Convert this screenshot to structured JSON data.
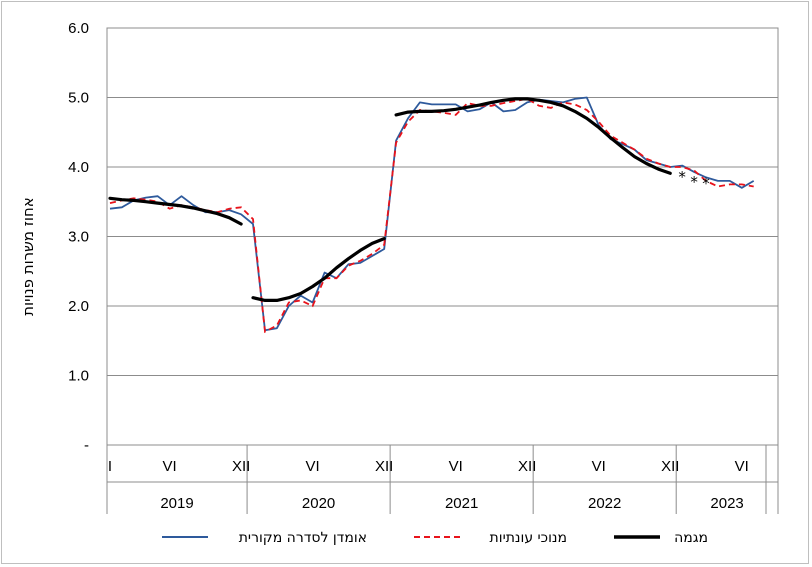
{
  "chart_data": {
    "type": "line",
    "ylabel": "אחוז משרות פנויות",
    "ylim": [
      0,
      6
    ],
    "y_ticks": [
      "-",
      "1.0",
      "2.0",
      "3.0",
      "4.0",
      "5.0",
      "6.0"
    ],
    "grid": true,
    "legend_position": "bottom",
    "x_axis": {
      "month_labels": [
        {
          "label": "I",
          "index": 0
        },
        {
          "label": "VI",
          "index": 5
        },
        {
          "label": "XII",
          "index": 11
        },
        {
          "label": "VI",
          "index": 17
        },
        {
          "label": "XII",
          "index": 23
        },
        {
          "label": "VI",
          "index": 29
        },
        {
          "label": "XII",
          "index": 35
        },
        {
          "label": "VI",
          "index": 41
        },
        {
          "label": "XII",
          "index": 47
        },
        {
          "label": "VI",
          "index": 53
        }
      ],
      "years": [
        {
          "label": "2019",
          "start": 0,
          "end": 12
        },
        {
          "label": "2020",
          "start": 12,
          "end": 24
        },
        {
          "label": "2021",
          "start": 24,
          "end": 36
        },
        {
          "label": "2022",
          "start": 36,
          "end": 48
        },
        {
          "label": "2023",
          "start": 48,
          "end": 60
        }
      ]
    },
    "series": [
      {
        "name": "אומדן לסדרה מקורית",
        "color": "#2e5a9c",
        "style": "solid",
        "x": [
          0,
          1,
          2,
          3,
          4,
          5,
          6,
          7,
          8,
          9,
          10,
          11,
          12,
          13,
          14,
          15,
          16,
          17,
          18,
          19,
          20,
          21,
          22,
          23,
          24,
          25,
          26,
          27,
          28,
          29,
          30,
          31,
          32,
          33,
          34,
          35,
          36,
          37,
          38,
          39,
          40,
          41,
          42,
          43,
          44,
          45,
          46,
          47,
          48,
          49,
          50,
          51,
          52,
          53,
          54
        ],
        "values": [
          3.4,
          3.42,
          3.52,
          3.56,
          3.58,
          3.45,
          3.58,
          3.45,
          3.35,
          3.35,
          3.38,
          3.32,
          3.18,
          1.65,
          1.68,
          2.0,
          2.15,
          2.05,
          2.48,
          2.4,
          2.6,
          2.62,
          2.72,
          2.82,
          4.38,
          4.7,
          4.93,
          4.9,
          4.9,
          4.9,
          4.8,
          4.83,
          4.93,
          4.8,
          4.82,
          4.93,
          4.97,
          4.95,
          4.93,
          4.98,
          5.0,
          4.6,
          4.4,
          4.33,
          4.25,
          4.1,
          4.05,
          4.0,
          4.02,
          3.93,
          3.85,
          3.8,
          3.8,
          3.7,
          3.8
        ]
      },
      {
        "name": "מנוכי עונתיות",
        "color": "#e8131b",
        "style": "dashed",
        "x": [
          0,
          1,
          2,
          3,
          4,
          5,
          6,
          7,
          8,
          9,
          10,
          11,
          12,
          13,
          14,
          15,
          16,
          17,
          18,
          19,
          20,
          21,
          22,
          23,
          24,
          25,
          26,
          27,
          28,
          29,
          30,
          31,
          32,
          33,
          34,
          35,
          36,
          37,
          38,
          39,
          40,
          41,
          42,
          43,
          44,
          45,
          46,
          47,
          48,
          49,
          50,
          51,
          52,
          53,
          54
        ],
        "values": [
          3.48,
          3.52,
          3.55,
          3.53,
          3.5,
          3.4,
          3.45,
          3.42,
          3.38,
          3.35,
          3.4,
          3.42,
          3.25,
          1.63,
          1.72,
          2.05,
          2.08,
          2.0,
          2.4,
          2.4,
          2.58,
          2.65,
          2.75,
          2.88,
          4.35,
          4.65,
          4.82,
          4.8,
          4.78,
          4.75,
          4.92,
          4.88,
          4.88,
          4.92,
          4.95,
          4.98,
          4.88,
          4.85,
          4.93,
          4.9,
          4.82,
          4.65,
          4.45,
          4.35,
          4.25,
          4.12,
          4.05,
          4.0,
          4.0,
          3.95,
          3.8,
          3.72,
          3.75,
          3.75,
          3.72
        ]
      },
      {
        "name": "מגמה",
        "color": "#000000",
        "style": "thick",
        "segments": [
          {
            "x": [
              0,
              1,
              2,
              3,
              4,
              5,
              6,
              7,
              8,
              9,
              10,
              11
            ],
            "values": [
              3.55,
              3.53,
              3.52,
              3.5,
              3.48,
              3.46,
              3.44,
              3.41,
              3.37,
              3.33,
              3.27,
              3.18
            ]
          },
          {
            "x": [
              12,
              13,
              14,
              15,
              16,
              17,
              18,
              19,
              20,
              21,
              22,
              23
            ],
            "values": [
              2.12,
              2.08,
              2.08,
              2.12,
              2.18,
              2.28,
              2.4,
              2.55,
              2.68,
              2.8,
              2.9,
              2.97
            ]
          },
          {
            "x": [
              24,
              25,
              26,
              27,
              28,
              29,
              30,
              31,
              32,
              33,
              34,
              35,
              36,
              37,
              38,
              39,
              40,
              41,
              42,
              43,
              44,
              45,
              46,
              47
            ],
            "values": [
              4.75,
              4.79,
              4.8,
              4.8,
              4.81,
              4.83,
              4.86,
              4.89,
              4.93,
              4.96,
              4.98,
              4.98,
              4.96,
              4.93,
              4.88,
              4.8,
              4.7,
              4.57,
              4.42,
              4.28,
              4.15,
              4.05,
              3.97,
              3.91
            ]
          }
        ]
      },
      {
        "name": "trend-markers",
        "color": "#000000",
        "style": "asterisk",
        "x": [
          48,
          49,
          50
        ],
        "values": [
          3.87,
          3.8,
          3.78
        ]
      }
    ],
    "legend": [
      {
        "label": "אומדן לסדרה מקורית",
        "style": "solid",
        "color": "#2e5a9c"
      },
      {
        "label": "מנוכי עונתיות",
        "style": "dashed",
        "color": "#e8131b"
      },
      {
        "label": "מגמה",
        "style": "thick",
        "color": "#000000"
      }
    ]
  }
}
